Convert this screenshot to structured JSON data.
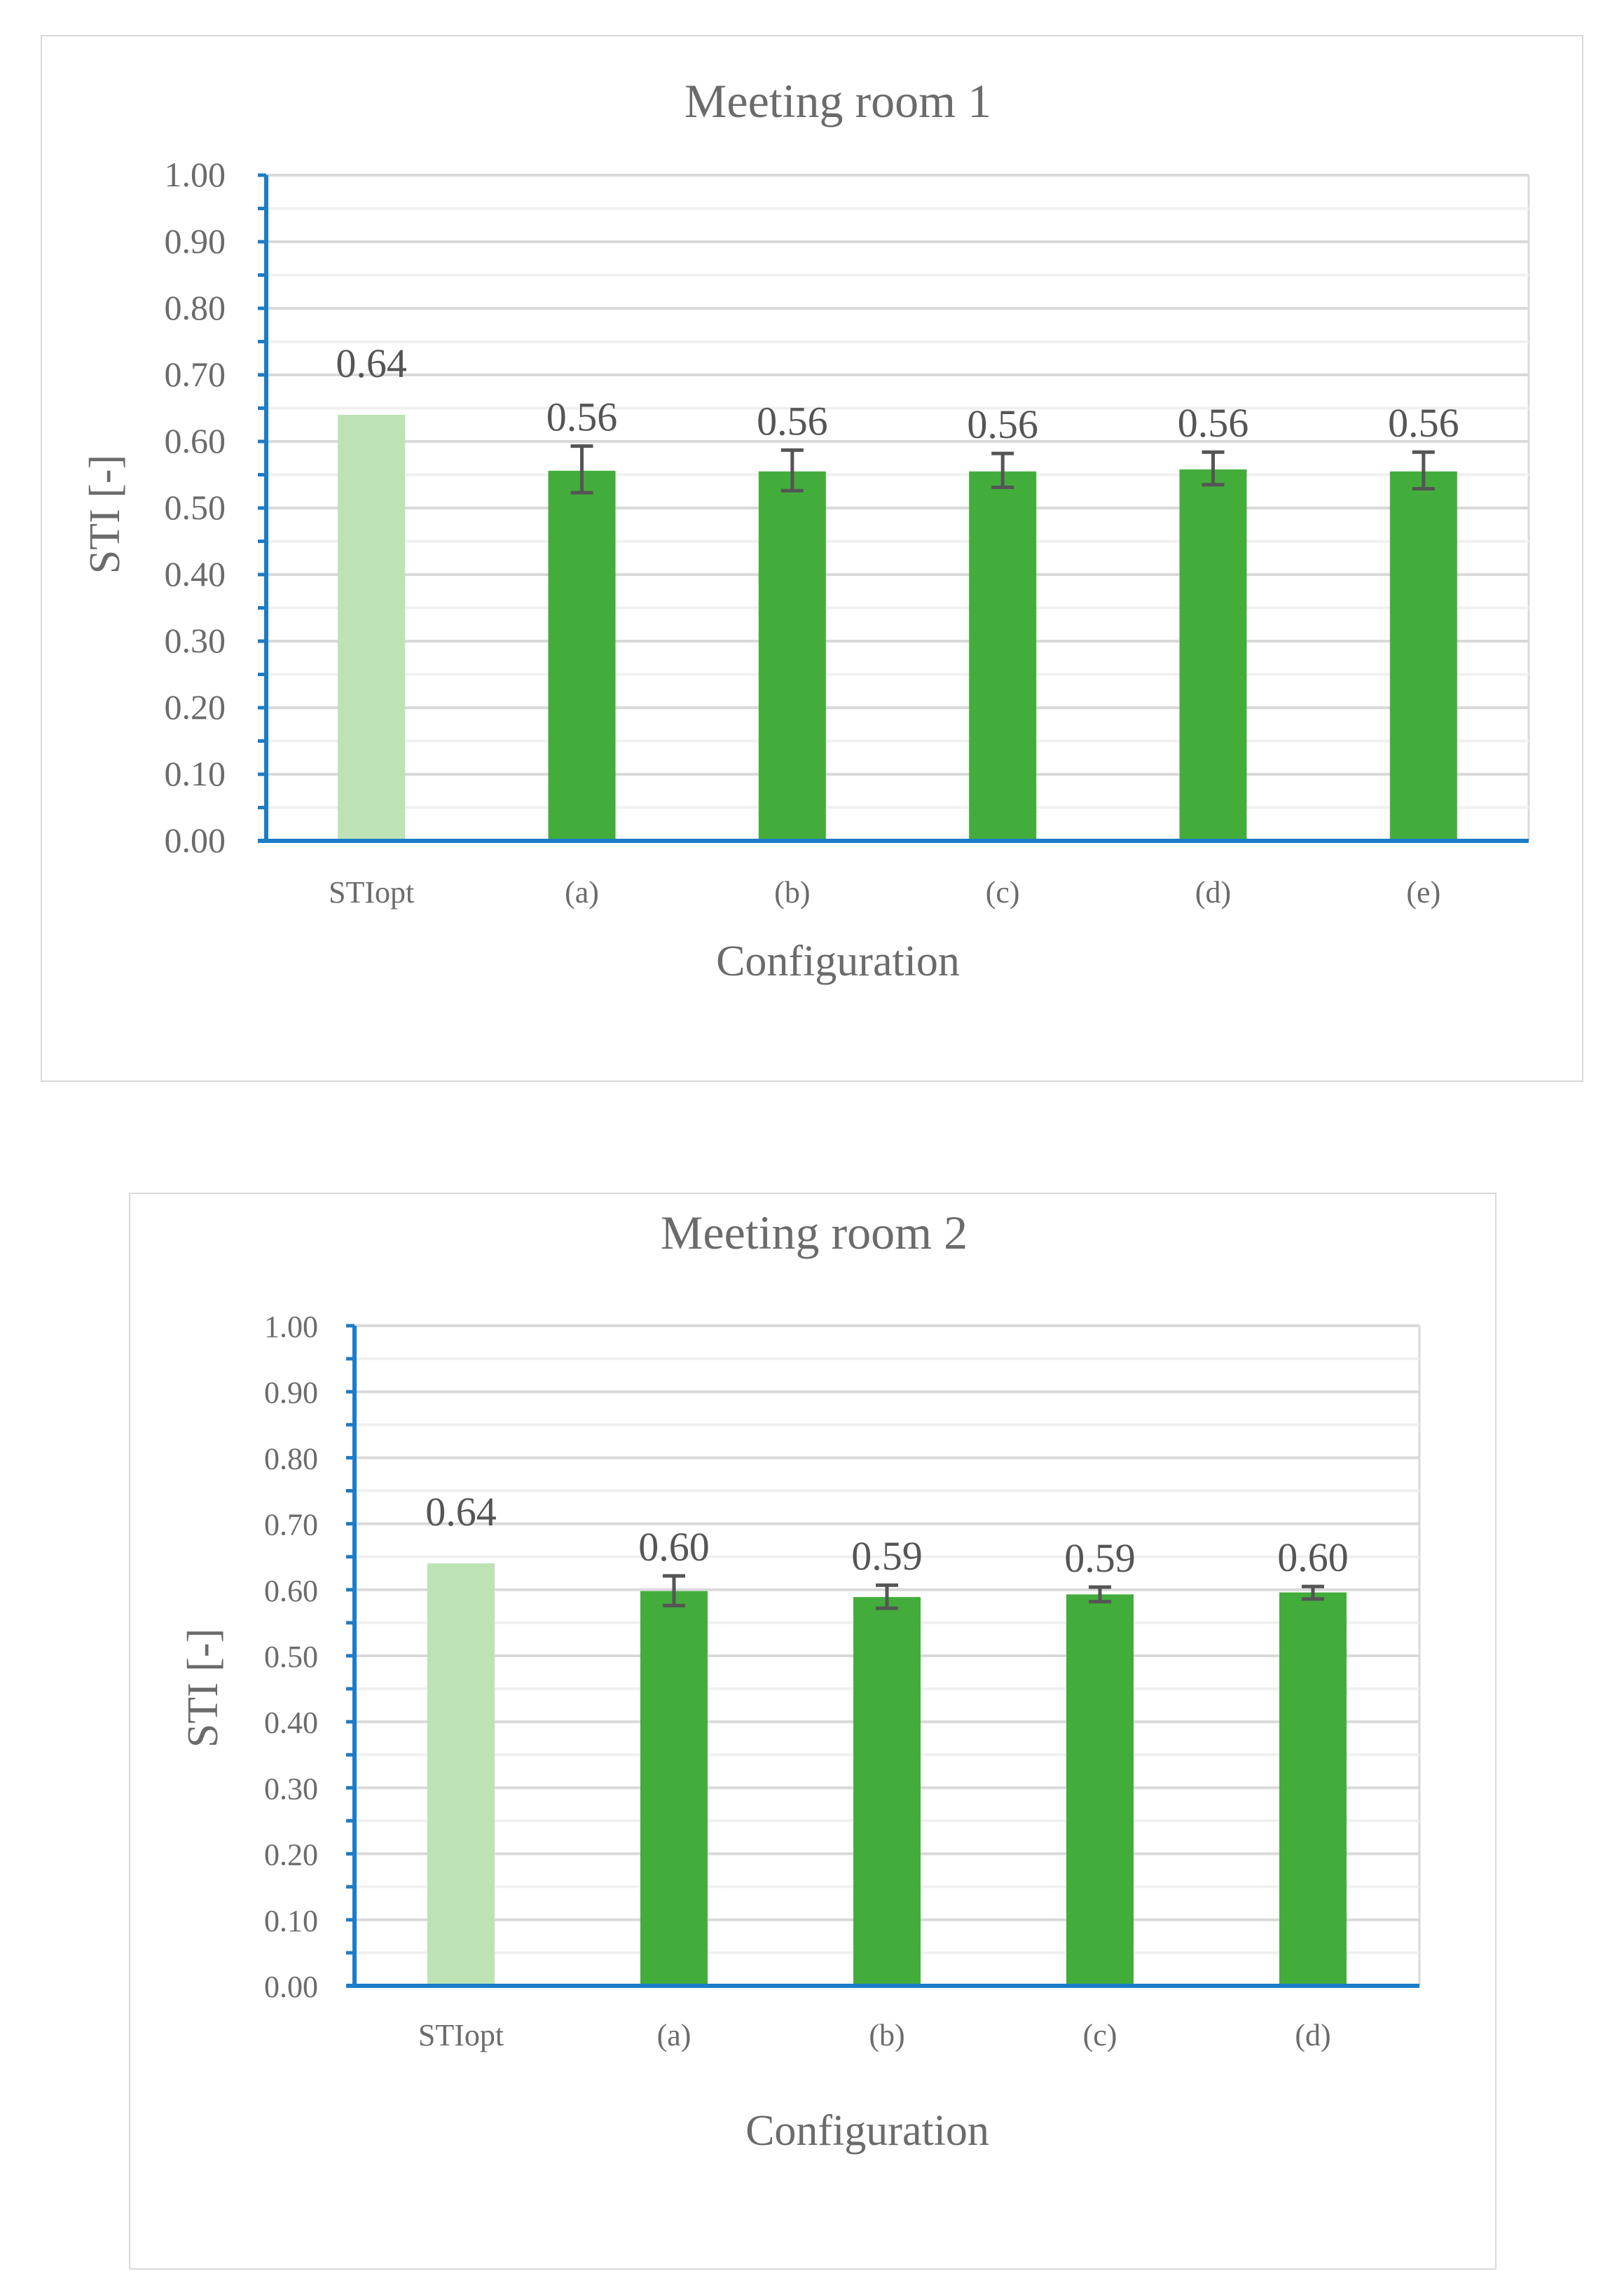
{
  "chart_data": [
    {
      "type": "bar",
      "title": "Meeting room 1",
      "xlabel": "Configuration",
      "ylabel": "STI [-]",
      "ylim": [
        0,
        1.0
      ],
      "yticks": [
        "0.00",
        "0.10",
        "0.20",
        "0.30",
        "0.40",
        "0.50",
        "0.60",
        "0.70",
        "0.80",
        "0.90",
        "1.00"
      ],
      "categories": [
        "STIopt",
        "(a)",
        "(b)",
        "(c)",
        "(d)",
        "(e)"
      ],
      "values": [
        0.64,
        0.556,
        0.555,
        0.555,
        0.558,
        0.555
      ],
      "data_labels": [
        "0.64",
        "0.56",
        "0.56",
        "0.56",
        "0.56",
        "0.56"
      ],
      "error_low": [
        null,
        0.523,
        0.526,
        0.531,
        0.535,
        0.529
      ],
      "error_high": [
        null,
        0.593,
        0.587,
        0.582,
        0.584,
        0.584
      ],
      "bar_colors": [
        "#bde3b4",
        "#43ad3b",
        "#43ad3b",
        "#43ad3b",
        "#43ad3b",
        "#43ad3b"
      ],
      "grid": true
    },
    {
      "type": "bar",
      "title": "Meeting room 2",
      "xlabel": "Configuration",
      "ylabel": "STI  [-]",
      "ylim": [
        0,
        1.0
      ],
      "yticks": [
        "0.00",
        "0.10",
        "0.20",
        "0.30",
        "0.40",
        "0.50",
        "0.60",
        "0.70",
        "0.80",
        "0.90",
        "1.00"
      ],
      "categories": [
        "STIopt",
        "(a)",
        "(b)",
        "(c)",
        "(d)"
      ],
      "values": [
        0.64,
        0.598,
        0.589,
        0.593,
        0.596
      ],
      "data_labels": [
        "0.64",
        "0.60",
        "0.59",
        "0.59",
        "0.60"
      ],
      "error_low": [
        null,
        0.576,
        0.572,
        0.582,
        0.586
      ],
      "error_high": [
        null,
        0.621,
        0.607,
        0.604,
        0.605
      ],
      "bar_colors": [
        "#bde3b4",
        "#43ad3b",
        "#43ad3b",
        "#43ad3b",
        "#43ad3b"
      ],
      "grid": true
    }
  ],
  "colors": {
    "axis": "#1c7cc7",
    "gridline": "#d9d9d9",
    "minor_gridline": "#f0f0f0",
    "errorbar": "#555555"
  }
}
